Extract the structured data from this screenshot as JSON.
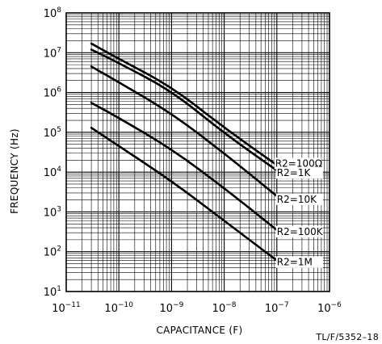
{
  "chart_data": {
    "type": "line",
    "xlabel": "CAPACITANCE (F)",
    "ylabel": "FREQUENCY (Hz)",
    "x_scale": "log",
    "y_scale": "log",
    "xlim": [
      1e-11,
      1e-06
    ],
    "ylim": [
      10,
      100000000
    ],
    "grid": true,
    "x_ticks": [
      {
        "base": "10",
        "exp": "−11"
      },
      {
        "base": "10",
        "exp": "−10"
      },
      {
        "base": "10",
        "exp": "−9"
      },
      {
        "base": "10",
        "exp": "−8"
      },
      {
        "base": "10",
        "exp": "−7"
      },
      {
        "base": "10",
        "exp": "−6"
      }
    ],
    "y_ticks": [
      {
        "base": "10",
        "exp": "1"
      },
      {
        "base": "10",
        "exp": "2"
      },
      {
        "base": "10",
        "exp": "3"
      },
      {
        "base": "10",
        "exp": "4"
      },
      {
        "base": "10",
        "exp": "5"
      },
      {
        "base": "10",
        "exp": "6"
      },
      {
        "base": "10",
        "exp": "7"
      },
      {
        "base": "10",
        "exp": "8"
      }
    ],
    "series": [
      {
        "name": "R2=100Ω",
        "points": [
          [
            3e-11,
            17000000
          ],
          [
            1e-10,
            7000000
          ],
          [
            1e-09,
            1400000
          ],
          [
            1e-08,
            130000
          ],
          [
            1e-07,
            15000
          ]
        ]
      },
      {
        "name": "R2=1K",
        "points": [
          [
            3e-11,
            12000000
          ],
          [
            1e-10,
            5500000
          ],
          [
            1e-09,
            1100000
          ],
          [
            1e-08,
            95000
          ],
          [
            1e-07,
            11000
          ]
        ]
      },
      {
        "name": "R2=10K",
        "points": [
          [
            3e-11,
            4500000
          ],
          [
            1e-10,
            1800000
          ],
          [
            1e-09,
            300000
          ],
          [
            1e-08,
            30000
          ],
          [
            1e-07,
            2500
          ]
        ]
      },
      {
        "name": "R2=100K",
        "points": [
          [
            3e-11,
            550000
          ],
          [
            1e-10,
            230000
          ],
          [
            1e-09,
            38000
          ],
          [
            1e-08,
            4000
          ],
          [
            1e-07,
            350
          ]
        ]
      },
      {
        "name": "R2=1M",
        "points": [
          [
            3e-11,
            130000
          ],
          [
            1e-10,
            45000
          ],
          [
            1e-09,
            6000
          ],
          [
            1e-08,
            600
          ],
          [
            1e-07,
            60
          ]
        ]
      }
    ],
    "footnote": "TL/F/5352–18"
  }
}
